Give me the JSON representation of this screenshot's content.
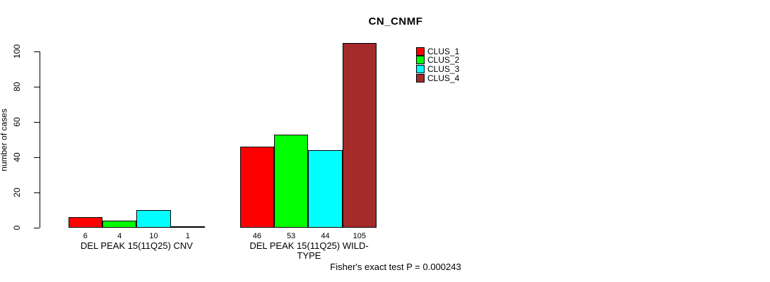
{
  "chart_data": {
    "type": "bar",
    "title": "CN_CNMF",
    "ylabel": "number of cases",
    "xlabel": "",
    "ylim": [
      0,
      110
    ],
    "yticks": [
      0,
      20,
      40,
      60,
      80,
      100
    ],
    "grid": false,
    "legend_position": "top-right",
    "bar_border_color": "#000000",
    "categories": [
      "DEL PEAK 15(11Q25) CNV",
      "DEL PEAK 15(11Q25) WILD-TYPE"
    ],
    "series": [
      {
        "name": "CLUS_1",
        "color": "#FF0000",
        "values": [
          6,
          46
        ]
      },
      {
        "name": "CLUS_2",
        "color": "#00FF00",
        "values": [
          4,
          53
        ]
      },
      {
        "name": "CLUS_3",
        "color": "#00FFFF",
        "values": [
          10,
          44
        ]
      },
      {
        "name": "CLUS_4",
        "color": "#A52A2A",
        "values": [
          1,
          105
        ]
      }
    ],
    "groups": [
      {
        "label": "DEL PEAK 15(11Q25) CNV",
        "values": [
          6,
          4,
          10,
          1
        ]
      },
      {
        "label": "DEL PEAK 15(11Q25) WILD-TYPE",
        "values": [
          46,
          53,
          44,
          105
        ]
      }
    ],
    "bar_value_labels": [
      6,
      4,
      10,
      1,
      46,
      53,
      44,
      105
    ]
  },
  "footer": {
    "text": "Fisher's exact test P = 0.000243"
  }
}
